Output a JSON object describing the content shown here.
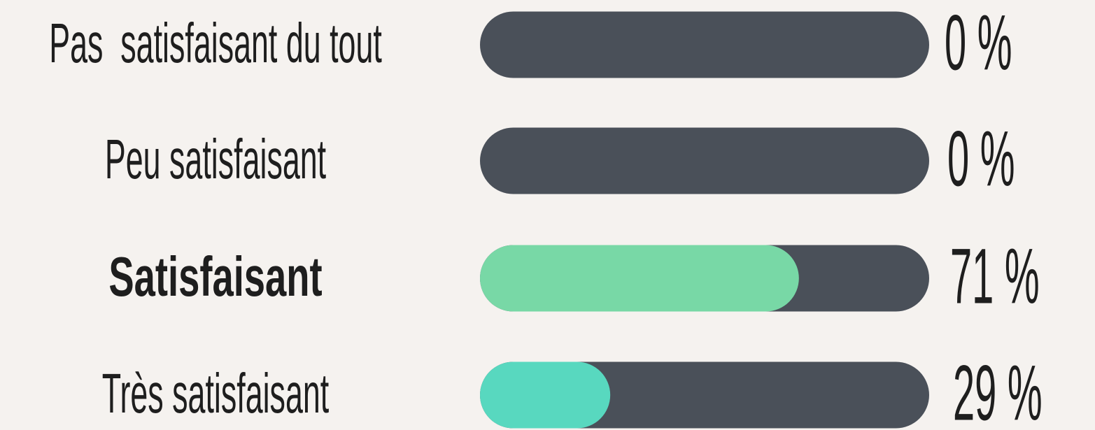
{
  "chart_data": {
    "type": "bar",
    "orientation": "horizontal",
    "categories": [
      "Pas  satisfaisant du tout",
      "Peu satisfaisant",
      "Satisfaisant",
      "Très satisfaisant"
    ],
    "values": [
      0,
      0,
      71,
      29
    ],
    "value_labels": [
      "0 %",
      "0 %",
      "71 %",
      "29 %"
    ],
    "colors": [
      "#78d8a6",
      "#78d8a6",
      "#78d8a6",
      "#58d8bf"
    ],
    "track_color": "#4a5059",
    "bold": [
      false,
      false,
      true,
      false
    ],
    "xlim": [
      0,
      100
    ]
  }
}
